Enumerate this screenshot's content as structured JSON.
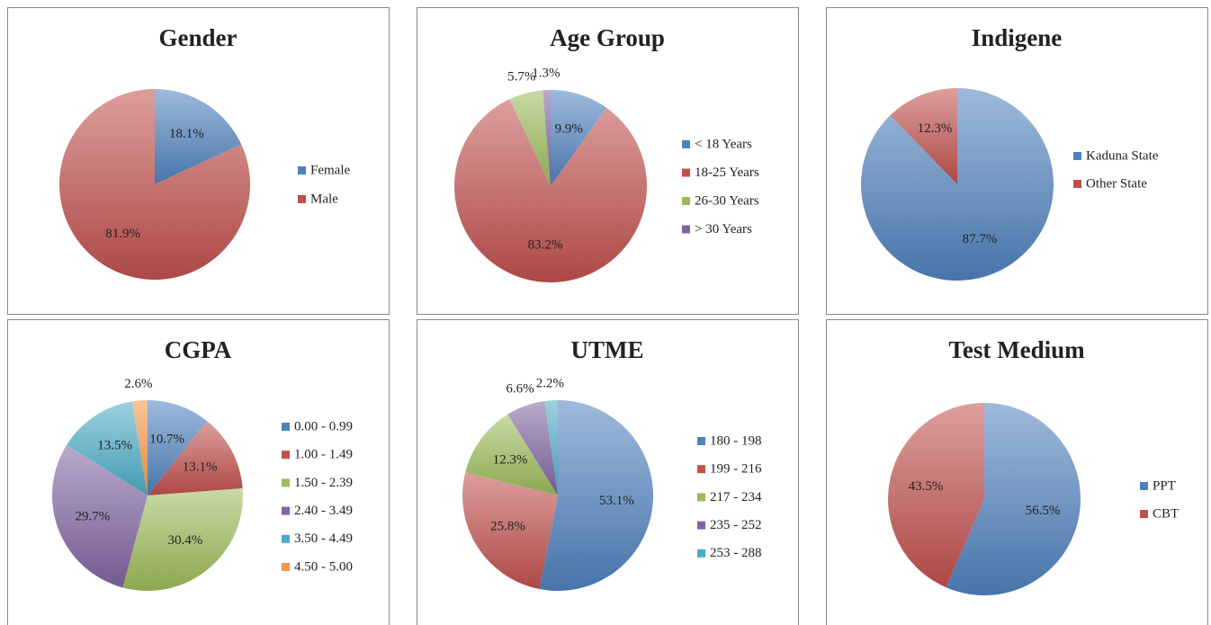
{
  "chart_data": [
    {
      "type": "pie",
      "title": "Gender",
      "categories": [
        "Female",
        "Male"
      ],
      "values": [
        18.1,
        81.9
      ],
      "value_labels": [
        "18.1%",
        "81.9%"
      ],
      "colors": [
        "#4f81bd",
        "#c0504d"
      ]
    },
    {
      "type": "pie",
      "title": "Age Group",
      "categories": [
        "< 18 Years",
        "18-25 Years",
        "26-30 Years",
        "> 30 Years"
      ],
      "values": [
        9.9,
        83.2,
        5.7,
        1.3
      ],
      "value_labels": [
        "9.9%",
        "83.2%",
        "5.7%",
        "1.3%"
      ],
      "colors": [
        "#4f81bd",
        "#c0504d",
        "#9bbb59",
        "#8064a2"
      ]
    },
    {
      "type": "pie",
      "title": "Indigene",
      "categories": [
        "Kaduna State",
        "Other State"
      ],
      "values": [
        87.7,
        12.3
      ],
      "value_labels": [
        "87.7%",
        "12.3%"
      ],
      "colors": [
        "#4f81bd",
        "#c0504d"
      ]
    },
    {
      "type": "pie",
      "title": "CGPA",
      "categories": [
        "0.00 - 0.99",
        "1.00 - 1.49",
        "1.50 - 2.39",
        "2.40 - 3.49",
        "3.50 - 4.49",
        "4.50 - 5.00"
      ],
      "values": [
        10.7,
        13.1,
        30.4,
        29.7,
        13.5,
        2.6
      ],
      "value_labels": [
        "10.7%",
        "13.1%",
        "30.4%",
        "29.7%",
        "13.5%",
        "2.6%"
      ],
      "colors": [
        "#4f81bd",
        "#c0504d",
        "#9bbb59",
        "#8064a2",
        "#4bacc6",
        "#f79646"
      ]
    },
    {
      "type": "pie",
      "title": "UTME",
      "categories": [
        "180 - 198",
        "199 - 216",
        "217 - 234",
        "235 - 252",
        "253 - 288"
      ],
      "values": [
        53.1,
        25.8,
        12.3,
        6.6,
        2.2
      ],
      "value_labels": [
        "53.1%",
        "25.8%",
        "12.3%",
        "6.6%",
        "2.2%"
      ],
      "colors": [
        "#4f81bd",
        "#c0504d",
        "#9bbb59",
        "#8064a2",
        "#4bacc6"
      ]
    },
    {
      "type": "pie",
      "title": "Test Medium",
      "categories": [
        "PPT",
        "CBT"
      ],
      "values": [
        56.5,
        43.5
      ],
      "value_labels": [
        "56.5%",
        "43.5%"
      ],
      "colors": [
        "#4f81bd",
        "#c0504d"
      ]
    }
  ]
}
